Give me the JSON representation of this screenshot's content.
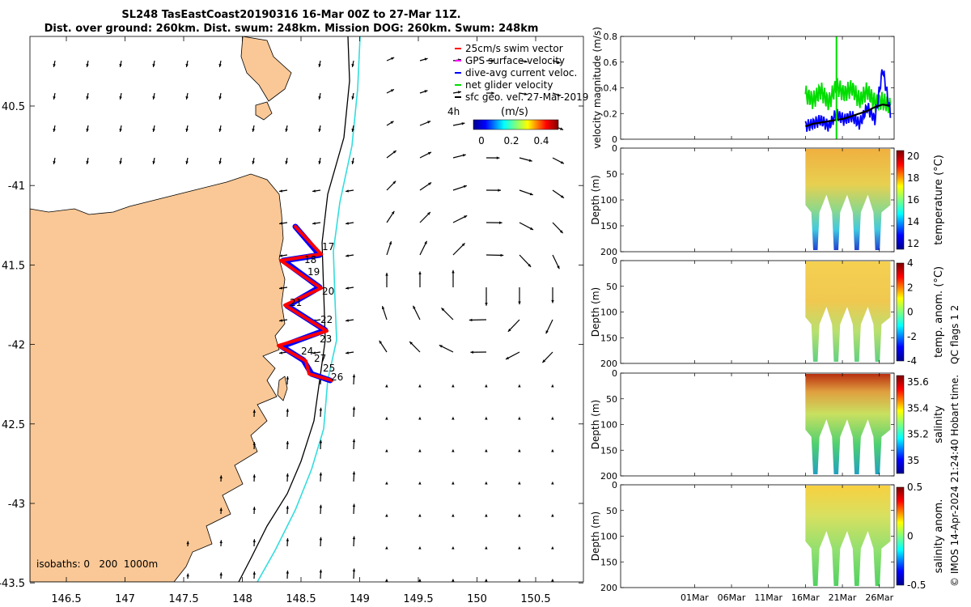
{
  "title": {
    "line1": "SL248 TasEastCoast20190316 16-Mar 00Z to 27-Mar 11Z.",
    "line2": "Dist. over ground: 260km. Dist. swum: 248km. Mission DOG: 260km. Swum: 248km"
  },
  "map": {
    "lon_ticks": [
      "146.5",
      "147",
      "147.5",
      "148",
      "148.5",
      "149",
      "149.5",
      "150",
      "150.5"
    ],
    "lat_ticks": [
      "40.5",
      "-41",
      "41.5",
      "-42",
      "42.5",
      "-43",
      "-43.5"
    ],
    "legend": [
      {
        "label": "25cm/s swim vector",
        "color": "#ff0000"
      },
      {
        "label": "GPS surface velocity",
        "color": "#ff00ff"
      },
      {
        "label": "dive-avg current veloc.",
        "color": "#0000ff"
      },
      {
        "label": "net glider velocity",
        "color": "#00dd00"
      },
      {
        "label": "sfc geo. vel. 27-Mar-2019",
        "color": "#000000"
      }
    ],
    "time_label": "4h",
    "colorbar_unit": "(m/s)",
    "colorbar_ticks": [
      "0",
      "0.2",
      "0.4"
    ],
    "day_labels": [
      "17",
      "18",
      "19",
      "20",
      "21",
      "22",
      "23",
      "24",
      "25",
      "26",
      "27"
    ],
    "isobath_label": "isobaths: 0   200  1000m",
    "colors": {
      "land": "#fac896",
      "isobath_200": "#000000",
      "isobath_1000": "#33dddd"
    }
  },
  "chart_data": [
    {
      "type": "line",
      "title": "",
      "ylabel": "velocity magnitude (m/s)",
      "ylim": [
        0,
        0.8
      ],
      "yticks": [
        "0",
        "0.2",
        "0.4",
        "0.6",
        "0.8"
      ],
      "x_range_days": [
        "2019-02-19",
        "2019-03-28"
      ],
      "series": [
        {
          "name": "net glider velocity",
          "color": "#00dd00",
          "x": [
            "16Mar",
            "17Mar",
            "18Mar",
            "19Mar",
            "20Mar",
            "21Mar",
            "22Mar",
            "23Mar",
            "24Mar",
            "25Mar",
            "26Mar",
            "27Mar"
          ],
          "values": [
            0.35,
            0.3,
            0.38,
            0.28,
            0.42,
            0.35,
            0.4,
            0.3,
            0.38,
            0.28,
            0.3,
            0.25
          ]
        },
        {
          "name": "dive-avg current veloc.",
          "color": "#0000ff",
          "x": [
            "16Mar",
            "17Mar",
            "18Mar",
            "19Mar",
            "20Mar",
            "21Mar",
            "22Mar",
            "23Mar",
            "24Mar",
            "25Mar",
            "26Mar",
            "27Mar"
          ],
          "values": [
            0.1,
            0.12,
            0.15,
            0.1,
            0.2,
            0.15,
            0.18,
            0.12,
            0.25,
            0.15,
            0.55,
            0.2
          ]
        },
        {
          "name": "sfc geo. vel.",
          "color": "#000000",
          "x": [
            "16Mar",
            "17Mar",
            "18Mar",
            "19Mar",
            "20Mar",
            "21Mar",
            "22Mar",
            "23Mar",
            "24Mar",
            "25Mar",
            "26Mar",
            "27Mar"
          ],
          "values": [
            0.1,
            0.12,
            0.13,
            0.14,
            0.15,
            0.16,
            0.18,
            0.2,
            0.22,
            0.25,
            0.27,
            0.26
          ]
        }
      ]
    },
    {
      "type": "heatmap",
      "ylabel": "Depth (m)",
      "clabel": "temperature (°C)",
      "ylim": [
        200,
        0
      ],
      "yticks": [
        "0",
        "50",
        "100",
        "150",
        "200"
      ],
      "cticks": [
        "12",
        "14",
        "16",
        "18",
        "20"
      ],
      "crange": [
        11.5,
        20.5
      ]
    },
    {
      "type": "heatmap",
      "ylabel": "Depth (m)",
      "clabel": "temp. anom. (°C)",
      "ylim": [
        200,
        0
      ],
      "yticks": [
        "0",
        "50",
        "100",
        "150",
        "200"
      ],
      "cticks": [
        "-4",
        "-2",
        "0",
        "2",
        "4"
      ],
      "crange": [
        -4,
        4
      ]
    },
    {
      "type": "heatmap",
      "ylabel": "Depth (m)",
      "clabel": "salinity",
      "ylim": [
        200,
        0
      ],
      "yticks": [
        "0",
        "50",
        "100",
        "150",
        "200"
      ],
      "cticks": [
        "35",
        "35.2",
        "35.4",
        "35.6"
      ],
      "crange": [
        34.9,
        35.65
      ]
    },
    {
      "type": "heatmap",
      "ylabel": "Depth (m)",
      "clabel": "salinity anom.",
      "ylim": [
        200,
        0
      ],
      "yticks": [
        "0",
        "50",
        "100",
        "150",
        "200"
      ],
      "cticks": [
        "-0.5",
        "0",
        "0.5"
      ],
      "crange": [
        -0.5,
        0.5
      ],
      "xticks": [
        "01Mar",
        "06Mar",
        "11Mar",
        "16Mar",
        "21Mar",
        "26Mar"
      ]
    }
  ],
  "side_note": {
    "qc": "QC flags 1  2",
    "stamp": "© IMOS 14-Apr-2024 21:24:40 Hobart time."
  }
}
